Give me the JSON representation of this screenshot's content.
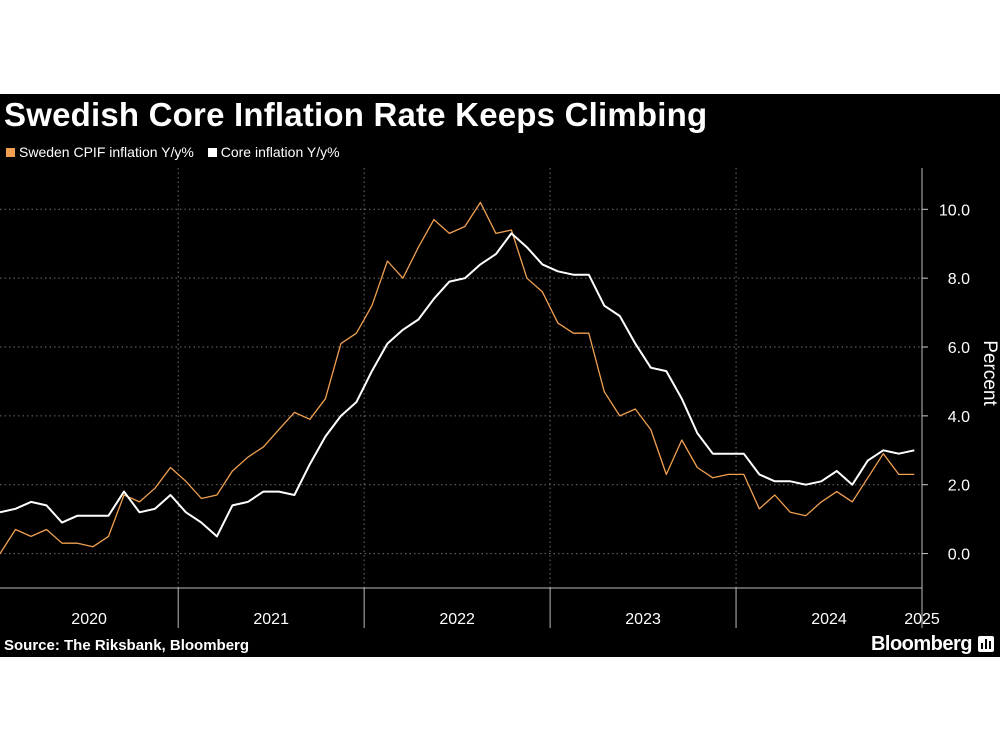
{
  "title": "Swedish Core Inflation Rate Keeps Climbing",
  "source": "Source: The Riksbank, Bloomberg",
  "brand": "Bloomberg",
  "colors": {
    "background": "#000000",
    "cpif": "#f0a050",
    "core": "#ffffff",
    "grid": "#6e6e6e"
  },
  "chart_data": {
    "type": "line",
    "ylabel": "Percent",
    "ylim": [
      -1.0,
      11.2
    ],
    "yticks": [
      0,
      2,
      4,
      6,
      8,
      10
    ],
    "ytick_labels": [
      "0.0",
      "2.0",
      "4.0",
      "6.0",
      "8.0",
      "10.0"
    ],
    "x_start": "2020-01",
    "year_labels": [
      "2020",
      "2021",
      "2022",
      "2023",
      "2024",
      "2025"
    ],
    "legend_position": "top-left",
    "grid": true,
    "series": [
      {
        "name": "Sweden CPIF inflation Y/y%",
        "color": "#f0a050",
        "values": [
          0.0,
          0.7,
          0.5,
          0.7,
          0.3,
          0.3,
          0.2,
          0.5,
          1.7,
          1.5,
          1.9,
          2.5,
          2.1,
          1.6,
          1.7,
          2.4,
          2.8,
          3.1,
          3.6,
          4.1,
          3.9,
          4.5,
          6.1,
          6.4,
          7.2,
          8.5,
          8.0,
          8.9,
          9.7,
          9.3,
          9.5,
          10.2,
          9.3,
          9.4,
          8.0,
          7.6,
          6.7,
          6.4,
          6.4,
          4.7,
          4.0,
          4.2,
          3.6,
          2.3,
          3.3,
          2.5,
          2.2,
          2.3,
          2.3,
          1.3,
          1.7,
          1.2,
          1.1,
          1.5,
          1.8,
          1.5,
          2.2,
          2.9,
          2.3,
          2.3
        ]
      },
      {
        "name": "Core inflation Y/y%",
        "color": "#ffffff",
        "values": [
          1.2,
          1.3,
          1.5,
          1.4,
          0.9,
          1.1,
          1.1,
          1.1,
          1.8,
          1.2,
          1.3,
          1.7,
          1.2,
          0.9,
          0.5,
          1.4,
          1.5,
          1.8,
          1.8,
          1.7,
          2.6,
          3.4,
          4.0,
          4.4,
          5.3,
          6.1,
          6.5,
          6.8,
          7.4,
          7.9,
          8.0,
          8.4,
          8.7,
          9.3,
          8.9,
          8.4,
          8.2,
          8.1,
          8.1,
          7.2,
          6.9,
          6.1,
          5.4,
          5.3,
          4.5,
          3.5,
          2.9,
          2.9,
          2.9,
          2.3,
          2.1,
          2.1,
          2.0,
          2.1,
          2.4,
          2.0,
          2.7,
          3.0,
          2.9,
          3.0
        ]
      }
    ]
  }
}
